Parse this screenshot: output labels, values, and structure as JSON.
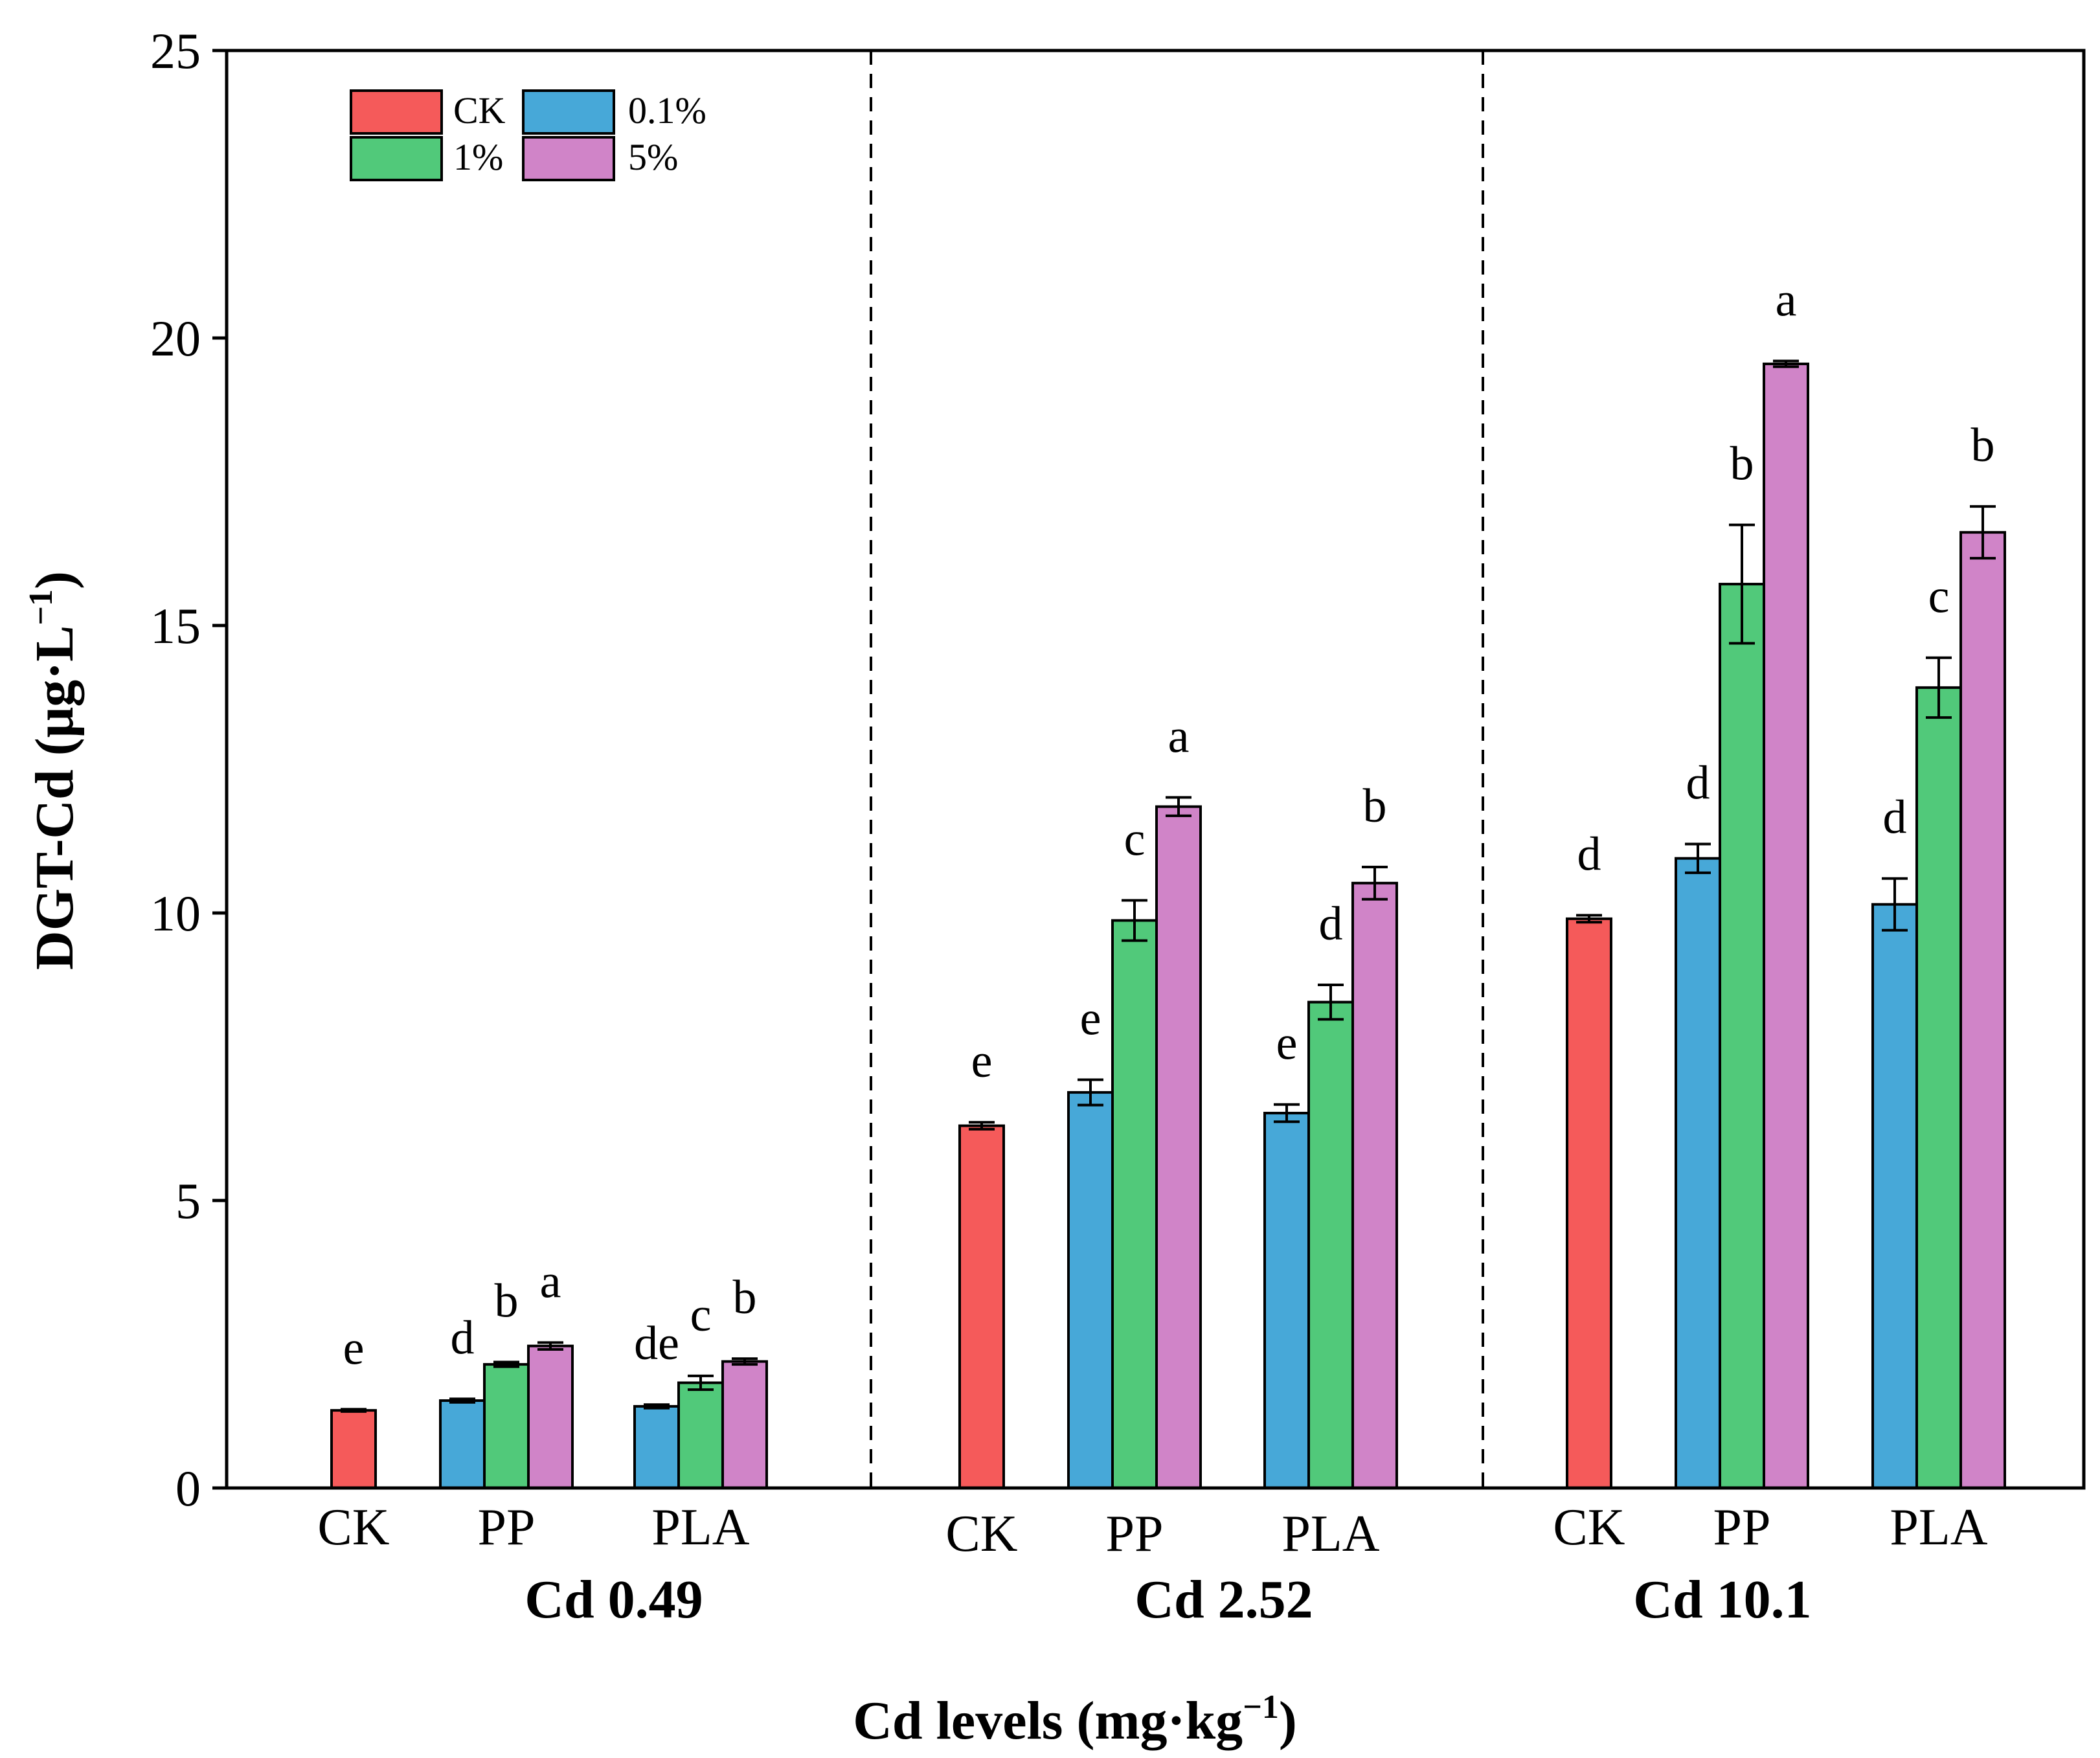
{
  "chart_data": {
    "type": "bar",
    "ylabel": "DGT-Cd (μg·L⁻¹)",
    "ylabel_main": "DGT-Cd (μg·L",
    "ylabel_sup": "−1",
    "ylabel_close": ")",
    "xlabel": "Cd levels (mg·kg⁻¹)",
    "xlabel_main": "Cd levels  (mg·kg",
    "xlabel_sup": "−1",
    "xlabel_close": ")",
    "ylim": [
      0,
      25
    ],
    "yticks": [
      0,
      5,
      10,
      15,
      20,
      25
    ],
    "ytick_labels": [
      "0",
      "5",
      "10",
      "15",
      "20",
      "25"
    ],
    "grid": false,
    "legend_position": "top-left",
    "series_meta": [
      {
        "name": "CK",
        "color": "#f55a5a"
      },
      {
        "name": "0.1%",
        "color": "#47a8d8"
      },
      {
        "name": "1%",
        "color": "#51c97a"
      },
      {
        "name": "5%",
        "color": "#d084c8"
      }
    ],
    "groups": [
      {
        "label": "Cd 0.49",
        "categories": [
          {
            "label": "CK",
            "bars": [
              {
                "series": "CK",
                "value": 1.35,
                "err": 0.02,
                "sig": "e"
              }
            ]
          },
          {
            "label": "PP",
            "bars": [
              {
                "series": "0.1%",
                "value": 1.52,
                "err": 0.03,
                "sig": "d"
              },
              {
                "series": "1%",
                "value": 2.15,
                "err": 0.04,
                "sig": "b"
              },
              {
                "series": "5%",
                "value": 2.47,
                "err": 0.06,
                "sig": "a"
              }
            ]
          },
          {
            "label": "PLA",
            "bars": [
              {
                "series": "0.1%",
                "value": 1.42,
                "err": 0.03,
                "sig": "de"
              },
              {
                "series": "1%",
                "value": 1.83,
                "err": 0.12,
                "sig": "c"
              },
              {
                "series": "5%",
                "value": 2.2,
                "err": 0.05,
                "sig": "b"
              }
            ]
          }
        ]
      },
      {
        "label": "Cd 2.52",
        "categories": [
          {
            "label": "CK",
            "bars": [
              {
                "series": "CK",
                "value": 6.3,
                "err": 0.06,
                "sig": "e"
              }
            ]
          },
          {
            "label": "PP",
            "bars": [
              {
                "series": "0.1%",
                "value": 6.88,
                "err": 0.22,
                "sig": "e"
              },
              {
                "series": "1%",
                "value": 9.87,
                "err": 0.35,
                "sig": "c"
              },
              {
                "series": "5%",
                "value": 11.85,
                "err": 0.16,
                "sig": "a"
              }
            ]
          },
          {
            "label": "PLA",
            "bars": [
              {
                "series": "0.1%",
                "value": 6.52,
                "err": 0.15,
                "sig": "e"
              },
              {
                "series": "1%",
                "value": 8.45,
                "err": 0.3,
                "sig": "d"
              },
              {
                "series": "5%",
                "value": 10.52,
                "err": 0.28,
                "sig": "b"
              }
            ]
          }
        ]
      },
      {
        "label": "Cd 10.1",
        "categories": [
          {
            "label": "CK",
            "bars": [
              {
                "series": "CK",
                "value": 9.9,
                "err": 0.06,
                "sig": "d"
              }
            ]
          },
          {
            "label": "PP",
            "bars": [
              {
                "series": "0.1%",
                "value": 10.95,
                "err": 0.25,
                "sig": "d"
              },
              {
                "series": "1%",
                "value": 15.72,
                "err": 1.03,
                "sig": "b"
              },
              {
                "series": "5%",
                "value": 19.55,
                "err": 0.05,
                "sig": "a"
              }
            ]
          },
          {
            "label": "PLA",
            "bars": [
              {
                "series": "0.1%",
                "value": 10.15,
                "err": 0.45,
                "sig": "d"
              },
              {
                "series": "1%",
                "value": 13.92,
                "err": 0.52,
                "sig": "c"
              },
              {
                "series": "5%",
                "value": 16.62,
                "err": 0.45,
                "sig": "b"
              }
            ]
          }
        ]
      }
    ]
  }
}
